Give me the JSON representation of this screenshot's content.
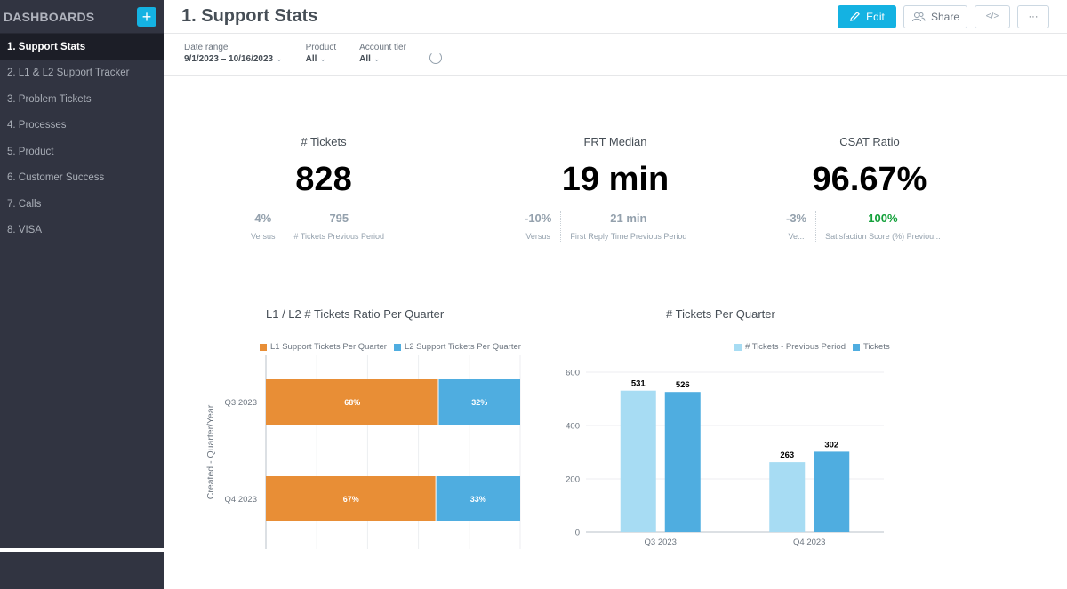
{
  "sidebar": {
    "title": "DASHBOARDS",
    "add_label": "+",
    "items": [
      {
        "label": "1. Support Stats"
      },
      {
        "label": "2. L1 & L2 Support Tracker"
      },
      {
        "label": "3. Problem Tickets"
      },
      {
        "label": "4. Processes"
      },
      {
        "label": "5. Product"
      },
      {
        "label": "6. Customer Success"
      },
      {
        "label": "7. Calls"
      },
      {
        "label": "8. VISA"
      }
    ]
  },
  "header": {
    "title": "1. Support Stats",
    "edit_label": "Edit",
    "share_label": "Share",
    "embed_label": "</>",
    "more_label": "···"
  },
  "filters": [
    {
      "label": "Date range",
      "value": "9/1/2023 – 10/16/2023"
    },
    {
      "label": "Product",
      "value": "All"
    },
    {
      "label": "Account tier",
      "value": "All"
    }
  ],
  "kpis": [
    {
      "title": "# Tickets",
      "value": "828",
      "pct": "4%",
      "pct_label": "Versus",
      "prev": "795",
      "prev_label": "# Tickets Previous Period"
    },
    {
      "title": "FRT Median",
      "value": "19 min",
      "pct": "-10%",
      "pct_label": "Versus",
      "prev": "21 min",
      "prev_label": "First Reply Time Previous Period"
    },
    {
      "title": "CSAT Ratio",
      "value": "96.67%",
      "pct": "-3%",
      "pct_label": "Ve...",
      "prev": "100%",
      "prev_label": "Satisfaction Score (%) Previou..."
    }
  ],
  "colors": {
    "l1": "#e88e36",
    "l2": "#4fade0",
    "prev": "#a7dcf3",
    "cur": "#4fade0",
    "accent": "#14b2e2"
  },
  "chart_data": [
    {
      "type": "bar",
      "orientation": "horizontal-stacked-percent",
      "title": "L1 / L2 # Tickets Ratio Per Quarter",
      "ylabel": "Created - Quarter/Year",
      "categories": [
        "Q3 2023",
        "Q4 2023"
      ],
      "series": [
        {
          "name": "L1 Support Tickets Per Quarter",
          "values": [
            68,
            67
          ],
          "labels": [
            "68%",
            "67%"
          ]
        },
        {
          "name": "L2 Support Tickets Per Quarter",
          "values": [
            32,
            33
          ],
          "labels": [
            "32%",
            "33%"
          ]
        }
      ],
      "xlim": [
        0,
        100
      ]
    },
    {
      "type": "bar",
      "title": "# Tickets Per Quarter",
      "categories": [
        "Q3 2023",
        "Q4 2023"
      ],
      "series": [
        {
          "name": "# Tickets - Previous Period",
          "values": [
            531,
            263
          ]
        },
        {
          "name": "Tickets",
          "values": [
            526,
            302
          ]
        }
      ],
      "ylim": [
        0,
        600
      ],
      "yticks": [
        "0",
        "200",
        "400",
        "600"
      ]
    }
  ]
}
